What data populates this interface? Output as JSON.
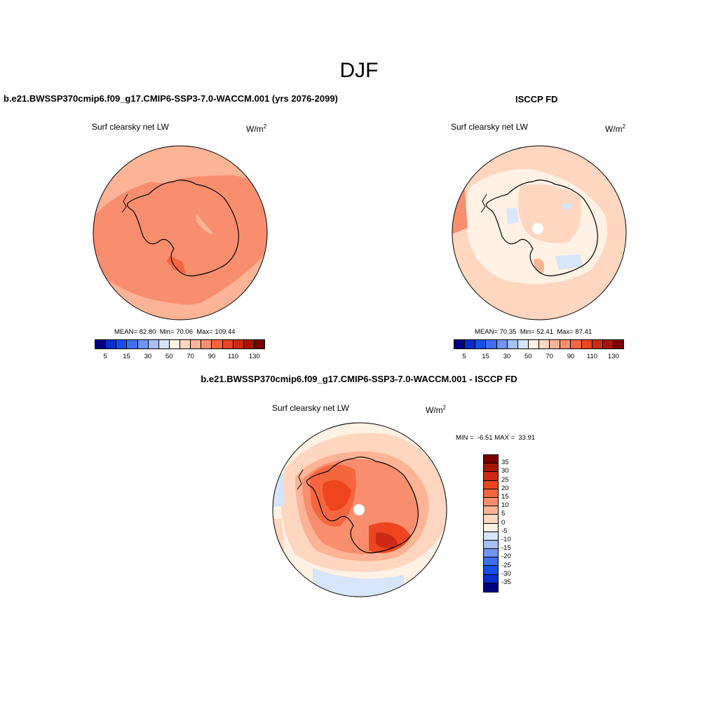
{
  "figure": {
    "season": "DJF",
    "model_title": "b.e21.BWSSP370cmip6.f09_g17.CMIP6-SSP3-7.0-WACCM.001 (yrs 2076-2099)",
    "obs_title": "ISCCP FD",
    "diff_title": "b.e21.BWSSP370cmip6.f09_g17.CMIP6-SSP3-7.0-WACCM.001 - ISCCP FD"
  },
  "panels": {
    "model": {
      "variable": "Surf clearsky net LW",
      "units_base": "W/m",
      "units_exp": "2",
      "mean_label": "MEAN=",
      "mean": "82.80",
      "min_label": "Min=",
      "min": "70.06",
      "max_label": "Max=",
      "max": "109.44"
    },
    "obs": {
      "variable": "Surf clearsky net LW",
      "units_base": "W/m",
      "units_exp": "2",
      "mean_label": "MEAN=",
      "mean": "70.35",
      "min_label": "Min=",
      "min": "52.41",
      "max_label": "Max=",
      "max": "87.41"
    },
    "diff": {
      "variable": "Surf clearsky net LW",
      "units_base": "W/m",
      "units_exp": "2",
      "min_label": "MIN =",
      "min": "-6.51",
      "max_label": "MAX =",
      "max": "33.91"
    }
  },
  "colorbars": {
    "abs_colors": [
      "#00007f",
      "#0a2ccf",
      "#1a4fe6",
      "#3f6fef",
      "#6f94f2",
      "#a6c0f5",
      "#d7e5fa",
      "#fff1e4",
      "#ffd6c0",
      "#fcb396",
      "#f98e6e",
      "#f6663f",
      "#ee4520",
      "#cc2a12",
      "#a6170a",
      "#7a0000"
    ],
    "abs_ticks": [
      "5",
      "15",
      "30",
      "50",
      "70",
      "90",
      "110",
      "130"
    ],
    "diff_colors": [
      "#7a0000",
      "#a6170a",
      "#cc2a12",
      "#ee4520",
      "#f6663f",
      "#f98e6e",
      "#fcb396",
      "#ffd6c0",
      "#fff1e4",
      "#d7e5fa",
      "#a6c0f5",
      "#6f94f2",
      "#3f6fef",
      "#1a4fe6",
      "#0a2ccf",
      "#00007f"
    ],
    "diff_ticks": [
      "35",
      "30",
      "25",
      "20",
      "15",
      "10",
      "5",
      "0",
      "-5",
      "-10",
      "-15",
      "-20",
      "-25",
      "-30",
      "-35"
    ]
  }
}
